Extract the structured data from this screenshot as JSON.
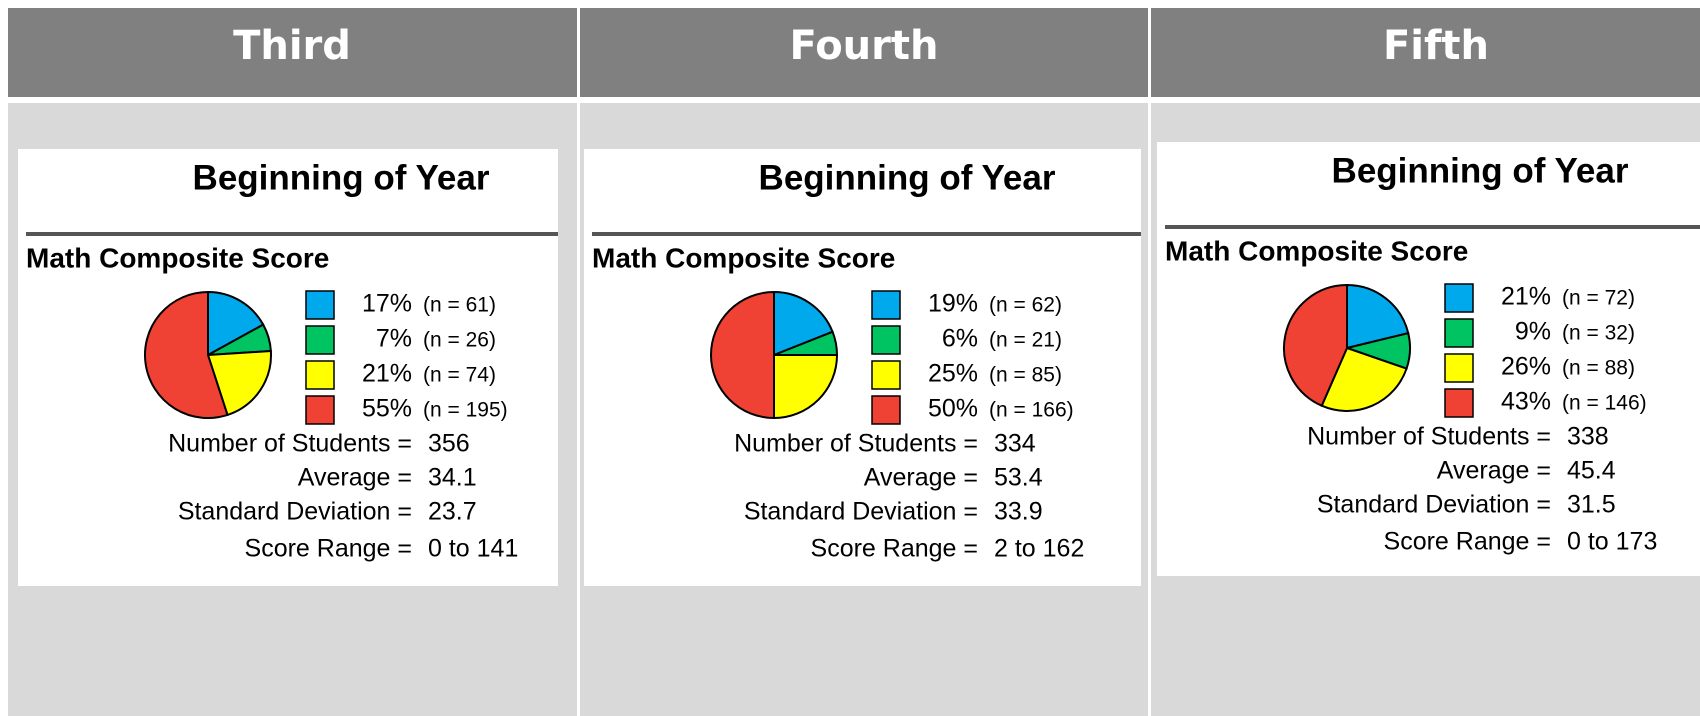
{
  "headers": [
    "Third",
    "Fourth",
    "Fifth"
  ],
  "chart_data": [
    {
      "type": "pie",
      "title": "Beginning of Year",
      "subtitle": "Math Composite Score",
      "values": [
        17,
        7,
        21,
        55
      ],
      "value_labels": [
        "17%",
        "7%",
        "21%",
        "55%"
      ],
      "annotations": [
        "(n = 61)",
        "(n = 26)",
        "(n = 74)",
        "(n = 195)"
      ],
      "colors": [
        "#00a8ec",
        "#00c462",
        "#ffff00",
        "#f04234"
      ],
      "stats": [
        {
          "label": "Number of Students =",
          "value": "356"
        },
        {
          "label": "Average =",
          "value": "34.1"
        },
        {
          "label": "Standard Deviation =",
          "value": "23.7"
        },
        {
          "label": "Score Range =",
          "value": "0 to 141"
        }
      ]
    },
    {
      "type": "pie",
      "title": "Beginning of Year",
      "subtitle": "Math Composite Score",
      "values": [
        19,
        6,
        25,
        50
      ],
      "value_labels": [
        "19%",
        "6%",
        "25%",
        "50%"
      ],
      "annotations": [
        "(n = 62)",
        "(n = 21)",
        "(n = 85)",
        "(n = 166)"
      ],
      "colors": [
        "#00a8ec",
        "#00c462",
        "#ffff00",
        "#f04234"
      ],
      "stats": [
        {
          "label": "Number of Students =",
          "value": "334"
        },
        {
          "label": "Average =",
          "value": "53.4"
        },
        {
          "label": "Standard Deviation =",
          "value": "33.9"
        },
        {
          "label": "Score Range =",
          "value": "2 to 162"
        }
      ]
    },
    {
      "type": "pie",
      "title": "Beginning of Year",
      "subtitle": "Math Composite Score",
      "values": [
        21,
        9,
        26,
        43
      ],
      "value_labels": [
        "21%",
        "9%",
        "26%",
        "43%"
      ],
      "annotations": [
        "(n = 72)",
        "(n = 32)",
        "(n = 88)",
        "(n = 146)"
      ],
      "colors": [
        "#00a8ec",
        "#00c462",
        "#ffff00",
        "#f04234"
      ],
      "stats": [
        {
          "label": "Number of Students =",
          "value": "338"
        },
        {
          "label": "Average =",
          "value": "45.4"
        },
        {
          "label": "Standard Deviation =",
          "value": "31.5"
        },
        {
          "label": "Score Range =",
          "value": "0 to 173"
        }
      ]
    }
  ]
}
